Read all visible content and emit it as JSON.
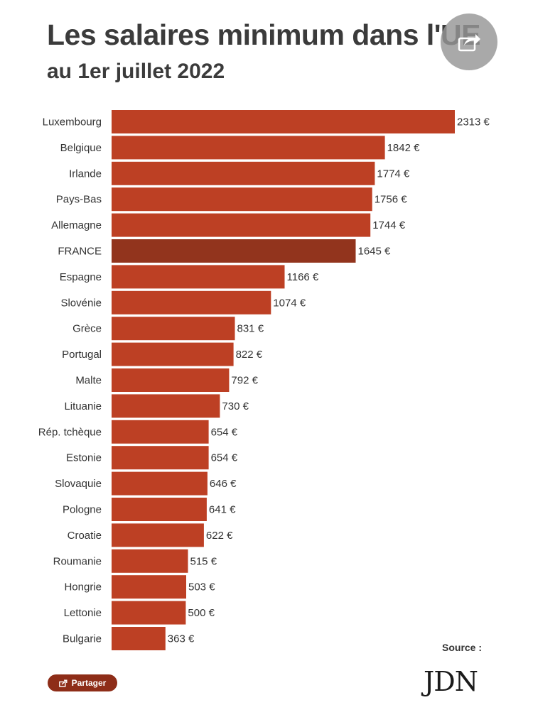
{
  "header": {
    "title": "Les salaires minimum dans l'UE",
    "subtitle": "au 1er juillet 2022"
  },
  "share_fab": {
    "icon": "share-arrow-icon"
  },
  "footer": {
    "source_label": "Source :",
    "share_button_label": "Partager",
    "share_button_icon": "share-box-icon",
    "logo_text": "JDN"
  },
  "colors": {
    "bar": "#bd4024",
    "bar_highlight": "#92341d",
    "button": "#8e2d18"
  },
  "chart_data": {
    "type": "bar",
    "orientation": "horizontal",
    "title": "Les salaires minimum dans l'UE",
    "subtitle": "au 1er juillet 2022",
    "unit": "€",
    "highlight": "FRANCE",
    "categories": [
      "Luxembourg",
      "Belgique",
      "Irlande",
      "Pays-Bas",
      "Allemagne",
      "FRANCE",
      "Espagne",
      "Slovénie",
      "Grèce",
      "Portugal",
      "Malte",
      "Lituanie",
      "Rép. tchèque",
      "Estonie",
      "Slovaquie",
      "Pologne",
      "Croatie",
      "Roumanie",
      "Hongrie",
      "Lettonie",
      "Bulgarie"
    ],
    "values": [
      2313,
      1842,
      1774,
      1756,
      1744,
      1645,
      1166,
      1074,
      831,
      822,
      792,
      730,
      654,
      654,
      646,
      641,
      622,
      515,
      503,
      500,
      363
    ],
    "value_labels": [
      "2313 €",
      "1842 €",
      "1774 €",
      "1756 €",
      "1744 €",
      "1645 €",
      "1166 €",
      "1074 €",
      "831 €",
      "822 €",
      "792 €",
      "730 €",
      "654 €",
      "654 €",
      "646 €",
      "641 €",
      "622 €",
      "515 €",
      "503 €",
      "500 €",
      "363 €"
    ]
  }
}
